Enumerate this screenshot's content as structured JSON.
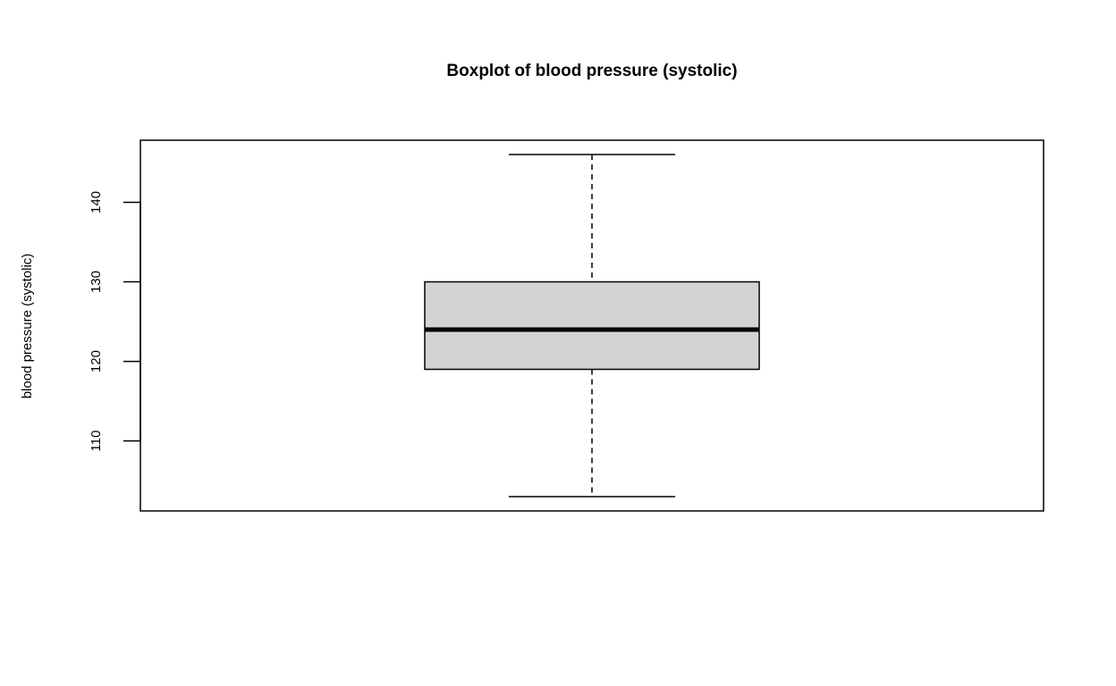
{
  "chart_data": {
    "type": "box",
    "title": "Boxplot of blood pressure (systolic)",
    "xlabel": "",
    "ylabel": "blood pressure (systolic)",
    "ylim": [
      101.2,
      147.8
    ],
    "yticks": [
      110,
      120,
      130,
      140
    ],
    "ytick_labels": [
      "110",
      "120",
      "130",
      "140"
    ],
    "grid": false,
    "legend": "none",
    "box": {
      "min": 103,
      "q1": 119,
      "median": 124,
      "q3": 130,
      "max": 146
    },
    "box_fill": "#d3d3d3",
    "line_color": "#000000"
  }
}
